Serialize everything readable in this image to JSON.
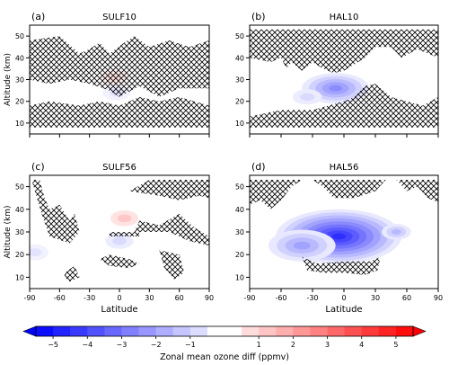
{
  "chart_data": [
    {
      "type": "contour",
      "panel": "(a)",
      "title": "SULF10",
      "xlabel": "",
      "ylabel": "Altitude (km)",
      "xlim": [
        -90,
        90
      ],
      "ylim": [
        5,
        55
      ],
      "xticks": [
        "-90",
        "-60",
        "-30",
        "0",
        "30",
        "60",
        "90"
      ],
      "yticks": [
        "10",
        "20",
        "30",
        "40",
        "50"
      ],
      "show_xticklabels": false,
      "anomalies": [
        {
          "lat": -5,
          "alt": 31,
          "value": 0.7
        },
        {
          "lat": -3,
          "alt": 24,
          "value": -0.6
        }
      ],
      "hatch_regions": [
        [
          [
            -90,
            48
          ],
          [
            -60,
            50
          ],
          [
            -40,
            42
          ],
          [
            -30,
            44
          ],
          [
            -20,
            47
          ],
          [
            -10,
            42
          ],
          [
            5,
            47
          ],
          [
            15,
            50
          ],
          [
            30,
            45
          ],
          [
            50,
            48
          ],
          [
            70,
            45
          ],
          [
            90,
            48
          ],
          [
            90,
            26
          ],
          [
            60,
            26
          ],
          [
            40,
            22
          ],
          [
            20,
            27
          ],
          [
            0,
            22
          ],
          [
            -10,
            25
          ],
          [
            -30,
            28
          ],
          [
            -50,
            30
          ],
          [
            -70,
            28
          ],
          [
            -90,
            30
          ]
        ],
        [
          [
            -90,
            18
          ],
          [
            -70,
            20
          ],
          [
            -40,
            18
          ],
          [
            -20,
            20
          ],
          [
            0,
            18
          ],
          [
            20,
            22
          ],
          [
            40,
            20
          ],
          [
            60,
            22
          ],
          [
            90,
            18
          ],
          [
            90,
            8
          ],
          [
            -90,
            8
          ]
        ]
      ]
    },
    {
      "type": "contour",
      "panel": "(b)",
      "title": "HAL10",
      "xlabel": "",
      "ylabel": "",
      "xlim": [
        -90,
        90
      ],
      "ylim": [
        5,
        55
      ],
      "xticks": [
        "-90",
        "-60",
        "-30",
        "0",
        "30",
        "60",
        "90"
      ],
      "yticks": [
        "10",
        "20",
        "30",
        "40",
        "50"
      ],
      "show_xticklabels": false,
      "anomalies": [
        {
          "lat": -8,
          "alt": 26,
          "value": -2.5
        },
        {
          "lat": -35,
          "alt": 22,
          "value": -0.8
        }
      ],
      "hatch_regions": [
        [
          [
            -90,
            53
          ],
          [
            90,
            53
          ],
          [
            90,
            40
          ],
          [
            70,
            44
          ],
          [
            55,
            40
          ],
          [
            45,
            45
          ],
          [
            30,
            45
          ],
          [
            20,
            40
          ],
          [
            10,
            37
          ],
          [
            0,
            34
          ],
          [
            -10,
            33
          ],
          [
            -20,
            35
          ],
          [
            -30,
            38
          ],
          [
            -40,
            34
          ],
          [
            -50,
            38
          ],
          [
            -55,
            35
          ],
          [
            -60,
            40
          ],
          [
            -70,
            38
          ],
          [
            -90,
            40
          ]
        ],
        [
          [
            30,
            28
          ],
          [
            45,
            22
          ],
          [
            60,
            20
          ],
          [
            75,
            18
          ],
          [
            90,
            22
          ],
          [
            90,
            8
          ],
          [
            -90,
            8
          ],
          [
            -90,
            13
          ],
          [
            -60,
            16
          ],
          [
            -30,
            16
          ],
          [
            0,
            20
          ],
          [
            10,
            22
          ],
          [
            20,
            27
          ]
        ]
      ]
    },
    {
      "type": "contour",
      "panel": "(c)",
      "title": "SULF56",
      "xlabel": "Latitude",
      "ylabel": "Altitude (km)",
      "xlim": [
        -90,
        90
      ],
      "ylim": [
        5,
        55
      ],
      "xticks": [
        "-90",
        "-60",
        "-30",
        "0",
        "30",
        "60",
        "90"
      ],
      "yticks": [
        "10",
        "20",
        "30",
        "40",
        "50"
      ],
      "show_xticklabels": true,
      "anomalies": [
        {
          "lat": 5,
          "alt": 36,
          "value": 1.2
        },
        {
          "lat": 0,
          "alt": 26,
          "value": -0.8
        },
        {
          "lat": -85,
          "alt": 21,
          "value": -0.6
        }
      ],
      "hatch_regions": [
        [
          [
            -80,
            53
          ],
          [
            -75,
            45
          ],
          [
            -70,
            40
          ],
          [
            -60,
            42
          ],
          [
            -50,
            35
          ],
          [
            -45,
            38
          ],
          [
            -40,
            30
          ],
          [
            -50,
            25
          ],
          [
            -70,
            28
          ],
          [
            -78,
            38
          ],
          [
            -88,
            53
          ]
        ],
        [
          [
            20,
            35
          ],
          [
            40,
            33
          ],
          [
            60,
            38
          ],
          [
            75,
            32
          ],
          [
            90,
            28
          ],
          [
            90,
            24
          ],
          [
            70,
            26
          ],
          [
            50,
            30
          ],
          [
            30,
            30
          ],
          [
            15,
            30
          ]
        ],
        [
          [
            -10,
            30
          ],
          [
            20,
            30
          ],
          [
            20,
            28
          ],
          [
            -10,
            28
          ]
        ],
        [
          [
            10,
            48
          ],
          [
            40,
            46
          ],
          [
            60,
            44
          ],
          [
            80,
            46
          ],
          [
            90,
            45
          ],
          [
            90,
            53
          ],
          [
            30,
            53
          ]
        ],
        [
          [
            -55,
            12
          ],
          [
            -45,
            15
          ],
          [
            -40,
            10
          ],
          [
            -50,
            8
          ],
          [
            -55,
            10
          ]
        ],
        [
          [
            -20,
            18
          ],
          [
            -10,
            20
          ],
          [
            10,
            18
          ],
          [
            20,
            16
          ],
          [
            10,
            14
          ],
          [
            -10,
            15
          ]
        ],
        [
          [
            40,
            22
          ],
          [
            60,
            20
          ],
          [
            65,
            12
          ],
          [
            55,
            9
          ],
          [
            45,
            14
          ]
        ]
      ]
    },
    {
      "type": "contour",
      "panel": "(d)",
      "title": "HAL56",
      "xlabel": "Latitude",
      "ylabel": "",
      "xlim": [
        -90,
        90
      ],
      "ylim": [
        5,
        55
      ],
      "xticks": [
        "-90",
        "-60",
        "-30",
        "0",
        "30",
        "60",
        "90"
      ],
      "yticks": [
        "10",
        "20",
        "30",
        "40",
        "50"
      ],
      "show_xticklabels": true,
      "anomalies": [
        {
          "lat": -5,
          "alt": 28,
          "value": -4.5
        },
        {
          "lat": -40,
          "alt": 24,
          "value": -2.0
        },
        {
          "lat": 50,
          "alt": 30,
          "value": -1.5
        }
      ],
      "hatch_regions": [
        [
          [
            -90,
            53
          ],
          [
            -90,
            42
          ],
          [
            -80,
            44
          ],
          [
            -70,
            40
          ],
          [
            -60,
            44
          ],
          [
            -50,
            50
          ],
          [
            -40,
            53
          ]
        ],
        [
          [
            -30,
            53
          ],
          [
            -20,
            50
          ],
          [
            -10,
            45
          ],
          [
            10,
            45
          ],
          [
            30,
            48
          ],
          [
            40,
            53
          ]
        ],
        [
          [
            50,
            53
          ],
          [
            60,
            48
          ],
          [
            70,
            50
          ],
          [
            80,
            45
          ],
          [
            90,
            43
          ],
          [
            90,
            53
          ]
        ],
        [
          [
            -40,
            19
          ],
          [
            -25,
            16
          ],
          [
            0,
            17
          ],
          [
            25,
            17
          ],
          [
            35,
            19
          ],
          [
            32,
            13
          ],
          [
            20,
            11
          ],
          [
            0,
            12
          ],
          [
            -20,
            12
          ],
          [
            -35,
            13
          ]
        ]
      ]
    }
  ],
  "colorbar": {
    "label": "Zonal mean ozone diff (ppmv)",
    "ticks": [
      "-5",
      "-4",
      "-3",
      "-2",
      "-1",
      "1",
      "2",
      "3",
      "4",
      "5"
    ],
    "levels": [
      -5.5,
      -5,
      -4.5,
      -4,
      -3.5,
      -3,
      -2.5,
      -2,
      -1.5,
      -1,
      -0.5,
      0.5,
      1,
      1.5,
      2,
      2.5,
      3,
      3.5,
      4,
      4.5,
      5,
      5.5
    ],
    "negative_color": "#0000ff",
    "positive_color": "#ff0000",
    "neutral_color": "#ffffff"
  }
}
